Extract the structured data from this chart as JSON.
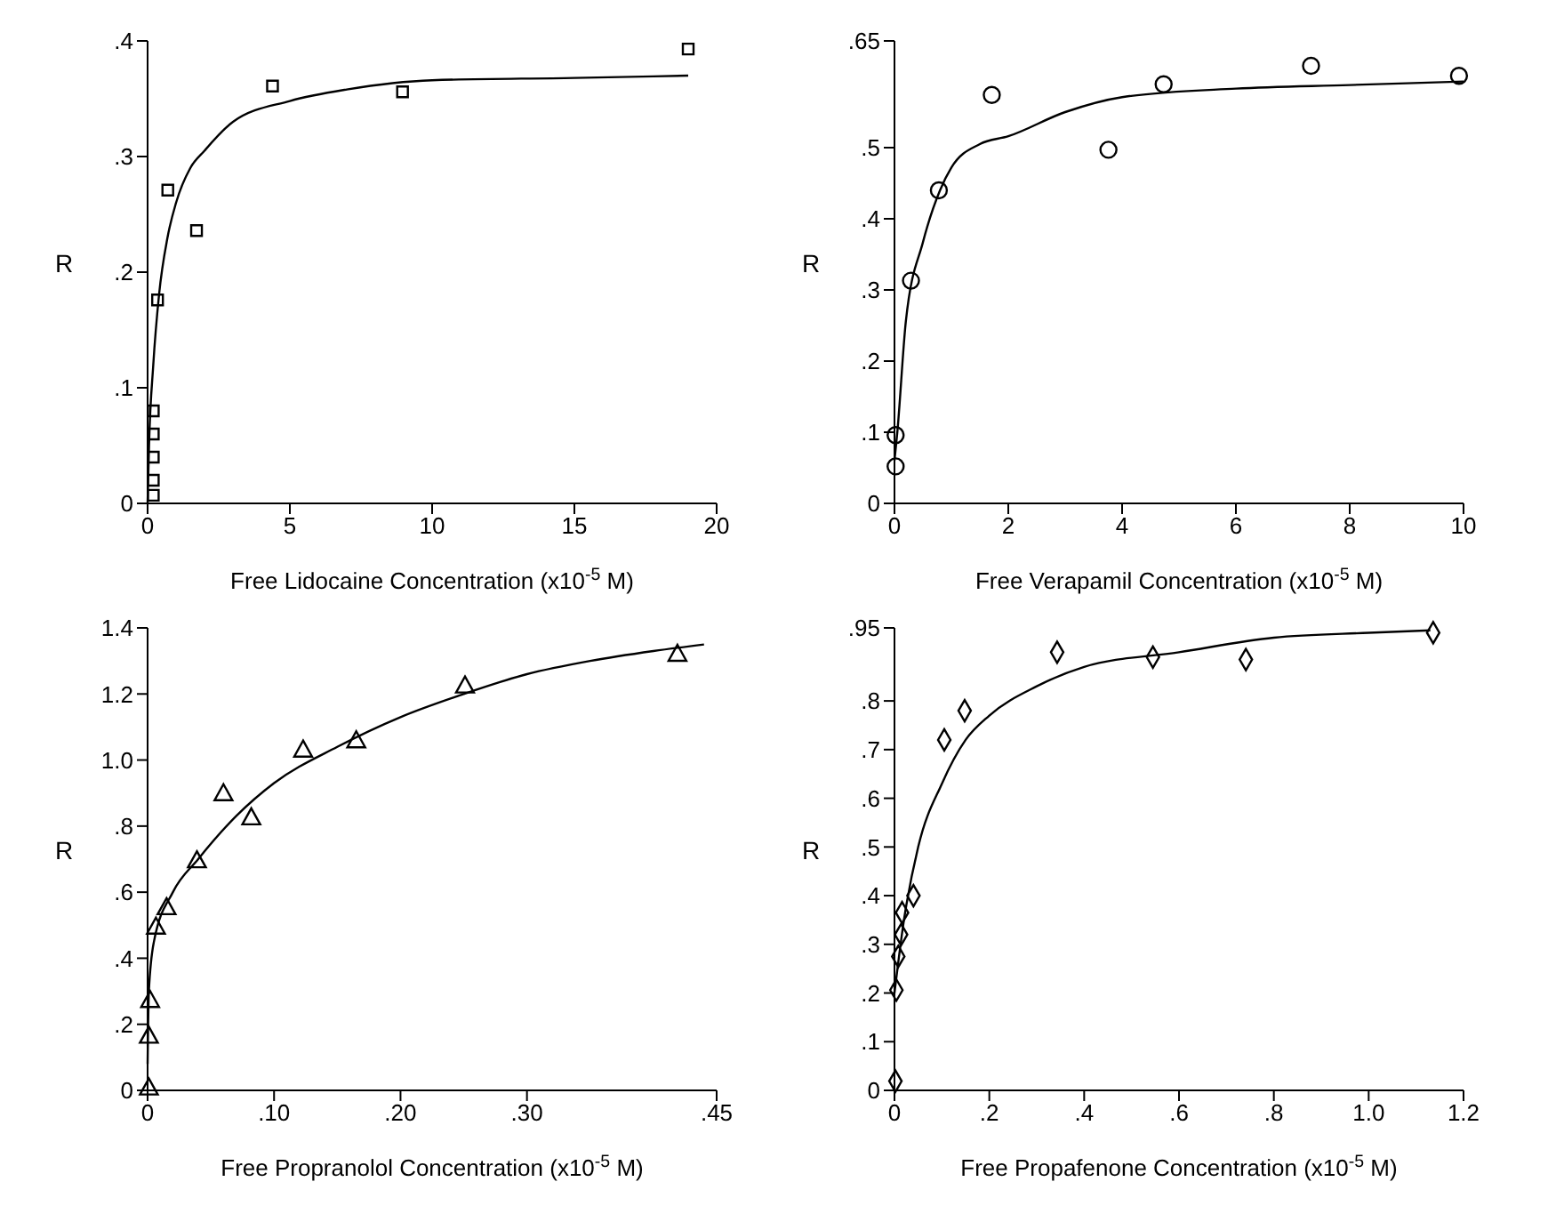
{
  "chart_data": [
    {
      "type": "scatter",
      "xlabel": "Free Lidocaine Concentration (x10$^{-5}$ M)",
      "ylabel": "R",
      "xlim": [
        0,
        20
      ],
      "xticks": [
        0,
        5,
        10,
        15,
        20
      ],
      "ylim": [
        0,
        0.4
      ],
      "yticks": [
        0,
        {
          "value": 0.1,
          "label": ".1"
        },
        {
          "value": 0.2,
          "label": ".2"
        },
        {
          "value": 0.3,
          "label": ".3"
        },
        {
          "value": 0.4,
          "label": ".4"
        }
      ],
      "series": [
        {
          "type": "scatter",
          "marker": "square",
          "color": "#000000",
          "x": [
            0.2,
            0.2,
            0.2,
            0.2,
            0.2,
            0.35,
            0.71,
            1.72,
            4.39,
            8.96,
            19.0
          ],
          "values": [
            0.007,
            0.02,
            0.04,
            0.06,
            0.08,
            0.176,
            0.271,
            0.236,
            0.361,
            0.356,
            0.393
          ]
        },
        {
          "type": "line",
          "color": "#000000",
          "x": [
            0,
            0.05,
            0.2,
            0.4,
            0.7,
            1,
            1.5,
            2,
            3,
            5,
            7,
            10,
            15,
            19
          ],
          "values": [
            0,
            0.05,
            0.12,
            0.18,
            0.23,
            0.26,
            0.29,
            0.305,
            0.33,
            0.348,
            0.358,
            0.366,
            0.368,
            0.37
          ]
        }
      ]
    },
    {
      "type": "scatter",
      "xlabel": "Free Verapamil Concentration (x10$^{-5}$ M)",
      "ylabel": "R",
      "xlim": [
        0,
        10
      ],
      "xticks": [
        0,
        2,
        4,
        6,
        8,
        10
      ],
      "ylim": [
        0,
        0.65
      ],
      "yticks": [
        0,
        {
          "value": 0.1,
          "label": ".1"
        },
        {
          "value": 0.2,
          "label": ".2"
        },
        {
          "value": 0.3,
          "label": ".3"
        },
        {
          "value": 0.4,
          "label": ".4"
        },
        {
          "value": 0.5,
          "label": ".5"
        },
        {
          "value": 0.65,
          "label": ".65"
        }
      ],
      "series": [
        {
          "type": "scatter",
          "marker": "circle",
          "color": "#000000",
          "x": [
            0.02,
            0.02,
            0.29,
            0.78,
            1.71,
            3.76,
            4.73,
            7.32,
            9.92
          ],
          "values": [
            0.052,
            0.096,
            0.313,
            0.44,
            0.574,
            0.497,
            0.589,
            0.615,
            0.601
          ]
        },
        {
          "type": "line",
          "color": "#000000",
          "x": [
            0,
            0.05,
            0.2,
            0.5,
            0.8,
            1,
            1.5,
            2,
            3,
            4,
            6,
            8,
            10
          ],
          "values": [
            0.06,
            0.1,
            0.256,
            0.367,
            0.44,
            0.472,
            0.505,
            0.516,
            0.55,
            0.571,
            0.583,
            0.588,
            0.593
          ]
        }
      ]
    },
    {
      "type": "scatter",
      "xlabel": "Free Propranolol Concentration (x10$^{-5}$ M)",
      "ylabel": "R",
      "xlim": [
        0,
        0.45
      ],
      "xticks": [
        0,
        {
          "value": 0.1,
          "label": ".10"
        },
        {
          "value": 0.2,
          "label": ".20"
        },
        {
          "value": 0.3,
          "label": ".30"
        },
        {
          "value": 0.45,
          "label": ".45"
        }
      ],
      "ylim": [
        0,
        1.4
      ],
      "yticks": [
        0,
        {
          "value": 0.2,
          "label": ".2"
        },
        {
          "value": 0.4,
          "label": ".4"
        },
        {
          "value": 0.6,
          "label": ".6"
        },
        {
          "value": 0.8,
          "label": ".8"
        },
        {
          "value": 1,
          "label": "1.0"
        },
        1.2,
        1.4
      ],
      "series": [
        {
          "type": "scatter",
          "marker": "triangle",
          "color": "#000000",
          "x": [
            0.001,
            0.001,
            0.002,
            0.0066,
            0.015,
            0.039,
            0.06,
            0.082,
            0.123,
            0.165,
            0.251,
            0.419
          ],
          "values": [
            0.009,
            0.166,
            0.274,
            0.496,
            0.555,
            0.697,
            0.9,
            0.827,
            1.032,
            1.06,
            1.226,
            1.322
          ]
        },
        {
          "type": "line",
          "color": "#000000",
          "x": [
            0,
            0.001,
            0.005,
            0.02,
            0.04,
            0.07,
            0.1,
            0.15,
            0.2,
            0.25,
            0.3,
            0.35,
            0.4,
            0.44
          ],
          "values": [
            0.08,
            0.3,
            0.45,
            0.6,
            0.7,
            0.83,
            0.93,
            1.04,
            1.13,
            1.2,
            1.26,
            1.3,
            1.33,
            1.35
          ]
        }
      ]
    },
    {
      "type": "scatter",
      "xlabel": "Free Propafenone Concentration (x10$^{-5}$ M)",
      "ylabel": "R",
      "xlim": [
        0,
        1.2
      ],
      "xticks": [
        0,
        {
          "value": 0.2,
          "label": ".2"
        },
        {
          "value": 0.4,
          "label": ".4"
        },
        {
          "value": 0.6,
          "label": ".6"
        },
        {
          "value": 0.8,
          "label": ".8"
        },
        {
          "value": 1,
          "label": "1.0"
        },
        1.2
      ],
      "ylim": [
        0,
        0.95
      ],
      "yticks": [
        0,
        {
          "value": 0.1,
          "label": ".1"
        },
        {
          "value": 0.2,
          "label": ".2"
        },
        {
          "value": 0.3,
          "label": ".3"
        },
        {
          "value": 0.4,
          "label": ".4"
        },
        {
          "value": 0.5,
          "label": ".5"
        },
        {
          "value": 0.6,
          "label": ".6"
        },
        {
          "value": 0.7,
          "label": ".7"
        },
        {
          "value": 0.8,
          "label": ".8"
        },
        {
          "value": 0.95,
          "label": ".95"
        }
      ],
      "series": [
        {
          "type": "scatter",
          "marker": "diamond",
          "color": "#000000",
          "x": [
            0.002,
            0.004,
            0.008,
            0.014,
            0.016,
            0.04,
            0.105,
            0.148,
            0.343,
            0.545,
            0.741,
            1.136
          ],
          "values": [
            0.019,
            0.206,
            0.275,
            0.32,
            0.365,
            0.4,
            0.72,
            0.78,
            0.9,
            0.89,
            0.885,
            0.94
          ]
        },
        {
          "type": "line",
          "color": "#000000",
          "x": [
            0,
            0.02,
            0.05,
            0.1,
            0.15,
            0.2,
            0.3,
            0.4,
            0.6,
            0.8,
            1.0,
            1.13
          ],
          "values": [
            0.2,
            0.35,
            0.5,
            0.63,
            0.72,
            0.77,
            0.83,
            0.87,
            0.9,
            0.93,
            0.94,
            0.945
          ]
        }
      ]
    }
  ]
}
